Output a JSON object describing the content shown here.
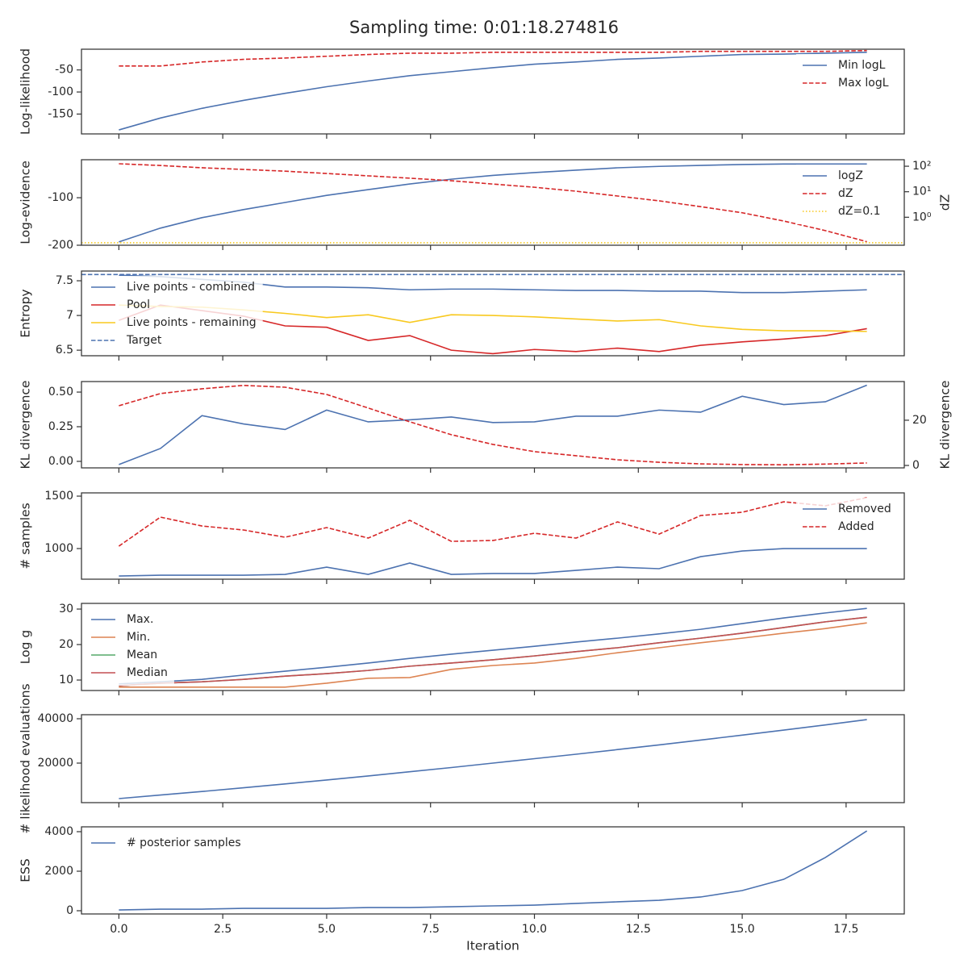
{
  "title": "Sampling time: 0:01:18.274816",
  "chart_data": [
    {
      "type": "line",
      "ylabel": "Log-likelihood",
      "legend": "upper right",
      "x": [
        0,
        1,
        2,
        3,
        4,
        5,
        6,
        7,
        8,
        9,
        10,
        11,
        12,
        13,
        14,
        15,
        16,
        17,
        18
      ],
      "xlim": [
        -0.9,
        18.9
      ],
      "xticks": [
        0,
        2.5,
        5,
        7.5,
        10,
        12.5,
        15,
        17.5
      ],
      "ylim": [
        -195,
        -3
      ],
      "yticks": [
        -150,
        -100,
        -50
      ],
      "series": [
        {
          "name": "Min logL",
          "color": "#4c72b0",
          "style": "solid",
          "values": [
            -186,
            -159,
            -137,
            -119,
            -103,
            -88,
            -75,
            -63,
            -54,
            -45,
            -37,
            -32,
            -26,
            -23,
            -19,
            -15,
            -14,
            -12,
            -10
          ]
        },
        {
          "name": "Max logL",
          "color": "#d62728",
          "style": "dashed",
          "values": [
            -41,
            -41,
            -32,
            -26,
            -23,
            -19,
            -15,
            -12,
            -12,
            -10,
            -10,
            -10,
            -10,
            -10,
            -8,
            -8,
            -8,
            -8,
            -6
          ]
        }
      ]
    },
    {
      "type": "line",
      "ylabel": "Log-evidence",
      "y2label": "dZ",
      "legend": "upper right",
      "x": [
        0,
        1,
        2,
        3,
        4,
        5,
        6,
        7,
        8,
        9,
        10,
        11,
        12,
        13,
        14,
        15,
        16,
        17,
        18
      ],
      "xlim": [
        -0.9,
        18.9
      ],
      "xticks": [
        0,
        2.5,
        5,
        7.5,
        10,
        12.5,
        15,
        17.5
      ],
      "ylim": [
        -200,
        -20
      ],
      "yticks": [
        -200,
        -100
      ],
      "y2log": true,
      "y2lim": [
        0.08,
        180
      ],
      "y2ticks": [
        {
          "value": 1,
          "label": "10⁰"
        },
        {
          "value": 10,
          "label": "10¹"
        },
        {
          "value": 100,
          "label": "10²"
        }
      ],
      "series": [
        {
          "name": "logZ",
          "color": "#4c72b0",
          "style": "solid",
          "values": [
            -193,
            -164,
            -142,
            -125,
            -110,
            -95,
            -83,
            -71,
            -61,
            -53,
            -47,
            -42,
            -37,
            -34,
            -32,
            -30,
            -29,
            -29,
            -29
          ]
        },
        {
          "name": "dZ",
          "color": "#d62728",
          "style": "dashed",
          "axis": "y2",
          "values": [
            125,
            107,
            87,
            75,
            64,
            52,
            42,
            34,
            27,
            20,
            15,
            10.5,
            6.8,
            4.4,
            2.6,
            1.5,
            0.71,
            0.3,
            0.11
          ]
        },
        {
          "name": "dZ=0.1",
          "color": "#f8c91f",
          "style": "dotted",
          "axis": "y2",
          "hline": 0.1
        }
      ]
    },
    {
      "type": "line",
      "ylabel": "Entropy",
      "legend": "upper left",
      "x": [
        0,
        1,
        2,
        3,
        4,
        5,
        6,
        7,
        8,
        9,
        10,
        11,
        12,
        13,
        14,
        15,
        16,
        17,
        18
      ],
      "xlim": [
        -0.9,
        18.9
      ],
      "xticks": [
        0,
        2.5,
        5,
        7.5,
        10,
        12.5,
        15,
        17.5
      ],
      "ylim": [
        6.42,
        7.64
      ],
      "yticks": [
        6.5,
        7.0,
        7.5
      ],
      "series": [
        {
          "name": "Live points - combined",
          "color": "#4c72b0",
          "style": "solid",
          "values": [
            7.58,
            7.56,
            7.52,
            7.48,
            7.41,
            7.41,
            7.4,
            7.37,
            7.38,
            7.38,
            7.37,
            7.36,
            7.36,
            7.35,
            7.35,
            7.33,
            7.33,
            7.35,
            7.37
          ]
        },
        {
          "name": "Pool",
          "color": "#d62728",
          "style": "solid",
          "values": [
            6.93,
            7.15,
            7.07,
            6.99,
            6.85,
            6.83,
            6.64,
            6.71,
            6.5,
            6.45,
            6.51,
            6.48,
            6.53,
            6.48,
            6.57,
            6.62,
            6.66,
            6.71,
            6.81
          ]
        },
        {
          "name": "Live points - remaining",
          "color": "#f8c91f",
          "style": "solid",
          "values": [
            7.15,
            7.13,
            7.12,
            7.08,
            7.03,
            6.97,
            7.01,
            6.9,
            7.01,
            7.0,
            6.98,
            6.95,
            6.92,
            6.94,
            6.85,
            6.8,
            6.78,
            6.78,
            6.77
          ]
        },
        {
          "name": "Target",
          "color": "#4c72b0",
          "style": "dashed",
          "hline": 7.59
        }
      ]
    },
    {
      "type": "line",
      "ylabel": "KL divergence",
      "y2label": "KL divergence",
      "x": [
        0,
        1,
        2,
        3,
        4,
        5,
        6,
        7,
        8,
        9,
        10,
        11,
        12,
        13,
        14,
        15,
        16,
        17,
        18
      ],
      "xlim": [
        -0.9,
        18.9
      ],
      "xticks": [
        0,
        2.5,
        5,
        7.5,
        10,
        12.5,
        15,
        17.5
      ],
      "ylim": [
        -0.047,
        0.576
      ],
      "yticks": [
        {
          "value": 0,
          "label": "0.00"
        },
        0.25,
        {
          "value": 0.5,
          "label": "0.50"
        }
      ],
      "y2lim": [
        -1.07,
        37.1
      ],
      "y2ticks": [
        0,
        20
      ],
      "series": [
        {
          "color": "#4c72b0",
          "style": "solid",
          "values": [
            -0.023,
            0.093,
            0.33,
            0.27,
            0.23,
            0.37,
            0.285,
            0.3,
            0.32,
            0.28,
            0.285,
            0.326,
            0.326,
            0.37,
            0.355,
            0.47,
            0.41,
            0.43,
            0.55
          ]
        },
        {
          "color": "#d62728",
          "style": "dashed",
          "axis": "y2",
          "values": [
            26.4,
            31.8,
            33.9,
            35.4,
            34.6,
            31.4,
            25.4,
            19.3,
            13.6,
            9.3,
            6.1,
            4.3,
            2.5,
            1.4,
            0.7,
            0.4,
            0.3,
            0.6,
            1.1
          ]
        }
      ]
    },
    {
      "type": "line",
      "ylabel": "# samples",
      "legend": "upper right",
      "x": [
        0,
        1,
        2,
        3,
        4,
        5,
        6,
        7,
        8,
        9,
        10,
        11,
        12,
        13,
        14,
        15,
        16,
        17,
        18
      ],
      "xlim": [
        -0.9,
        18.9
      ],
      "xticks": [
        0,
        2.5,
        5,
        7.5,
        10,
        12.5,
        15,
        17.5
      ],
      "ylim": [
        708,
        1531
      ],
      "yticks": [
        1000,
        1500
      ],
      "series": [
        {
          "name": "Removed",
          "color": "#4c72b0",
          "style": "solid",
          "values": [
            738,
            746,
            746,
            746,
            754,
            823,
            754,
            862,
            754,
            762,
            762,
            792,
            823,
            808,
            923,
            977,
            1000,
            1000,
            1000
          ]
        },
        {
          "name": "Added",
          "color": "#d62728",
          "style": "dashed",
          "values": [
            1023,
            1300,
            1215,
            1177,
            1108,
            1200,
            1100,
            1269,
            1069,
            1077,
            1146,
            1100,
            1254,
            1138,
            1315,
            1346,
            1446,
            1408,
            1485
          ]
        }
      ]
    },
    {
      "type": "line",
      "ylabel": "Log g",
      "legend": "upper left",
      "x": [
        0,
        1,
        2,
        3,
        4,
        5,
        6,
        7,
        8,
        9,
        10,
        11,
        12,
        13,
        14,
        15,
        16,
        17,
        18
      ],
      "xlim": [
        -0.9,
        18.9
      ],
      "xticks": [
        0,
        2.5,
        5,
        7.5,
        10,
        12.5,
        15,
        17.5
      ],
      "ylim": [
        7.05,
        31.6
      ],
      "yticks": [
        10,
        20,
        30
      ],
      "series": [
        {
          "name": "Max.",
          "color": "#4c72b0",
          "style": "solid",
          "values": [
            8.9,
            9.5,
            10.2,
            11.4,
            12.5,
            13.6,
            14.8,
            16.1,
            17.3,
            18.4,
            19.5,
            20.7,
            21.8,
            23,
            24.3,
            25.9,
            27.5,
            28.9,
            30.2
          ]
        },
        {
          "name": "Min.",
          "color": "#dd8452",
          "style": "solid",
          "values": [
            8,
            8,
            8,
            8,
            8,
            9.1,
            10.5,
            10.7,
            13,
            14.1,
            14.8,
            16.1,
            17.7,
            19.1,
            20.5,
            21.8,
            23.2,
            24.5,
            26.1
          ]
        },
        {
          "name": "Mean",
          "color": "#55a868",
          "style": "solid",
          "values": [
            8.4,
            9.1,
            9.5,
            10.2,
            11.1,
            11.8,
            12.7,
            13.9,
            14.8,
            15.7,
            16.8,
            18,
            19.1,
            20.5,
            21.8,
            23.2,
            24.8,
            26.4,
            27.7
          ]
        },
        {
          "name": "Median",
          "color": "#c44e52",
          "style": "solid",
          "values": [
            8.4,
            9.1,
            9.5,
            10.2,
            11.1,
            11.8,
            12.7,
            13.9,
            14.8,
            15.7,
            16.8,
            18,
            19.1,
            20.5,
            21.8,
            23.2,
            24.8,
            26.4,
            27.7
          ]
        }
      ]
    },
    {
      "type": "line",
      "ylabel": "# likelihood evaluations",
      "x": [
        0,
        1,
        2,
        3,
        4,
        5,
        6,
        7,
        8,
        9,
        10,
        11,
        12,
        13,
        14,
        15,
        16,
        17,
        18
      ],
      "xlim": [
        -0.9,
        18.9
      ],
      "xticks": [
        0,
        2.5,
        5,
        7.5,
        10,
        12.5,
        15,
        17.5
      ],
      "ylim": [
        2180,
        41820
      ],
      "yticks": [
        20000,
        40000
      ],
      "series": [
        {
          "color": "#4c72b0",
          "style": "solid",
          "values": [
            4000,
            5600,
            7200,
            8900,
            10600,
            12400,
            14200,
            16100,
            18000,
            20000,
            22000,
            24000,
            26100,
            28200,
            30400,
            32600,
            34900,
            37200,
            39600
          ]
        }
      ]
    },
    {
      "type": "line",
      "ylabel": "ESS",
      "xlabel": "Iteration",
      "legend": "upper left",
      "x": [
        0,
        1,
        2,
        3,
        4,
        5,
        6,
        7,
        8,
        9,
        10,
        11,
        12,
        13,
        14,
        15,
        16,
        17,
        18
      ],
      "xlim": [
        -0.9,
        18.9
      ],
      "xticks": [
        {
          "value": 0,
          "label": "0.0"
        },
        2.5,
        {
          "value": 5,
          "label": "5.0"
        },
        7.5,
        {
          "value": 10,
          "label": "10.0"
        },
        12.5,
        {
          "value": 15,
          "label": "15.0"
        },
        17.5
      ],
      "ylim": [
        -163,
        4245
      ],
      "yticks": [
        0,
        2000,
        4000
      ],
      "series": [
        {
          "name": "# posterior samples",
          "color": "#4c72b0",
          "style": "solid",
          "values": [
            40,
            80,
            80,
            120,
            120,
            120,
            160,
            160,
            200,
            245,
            285,
            370,
            450,
            530,
            695,
            1020,
            1590,
            2690,
            4040
          ]
        }
      ]
    }
  ]
}
